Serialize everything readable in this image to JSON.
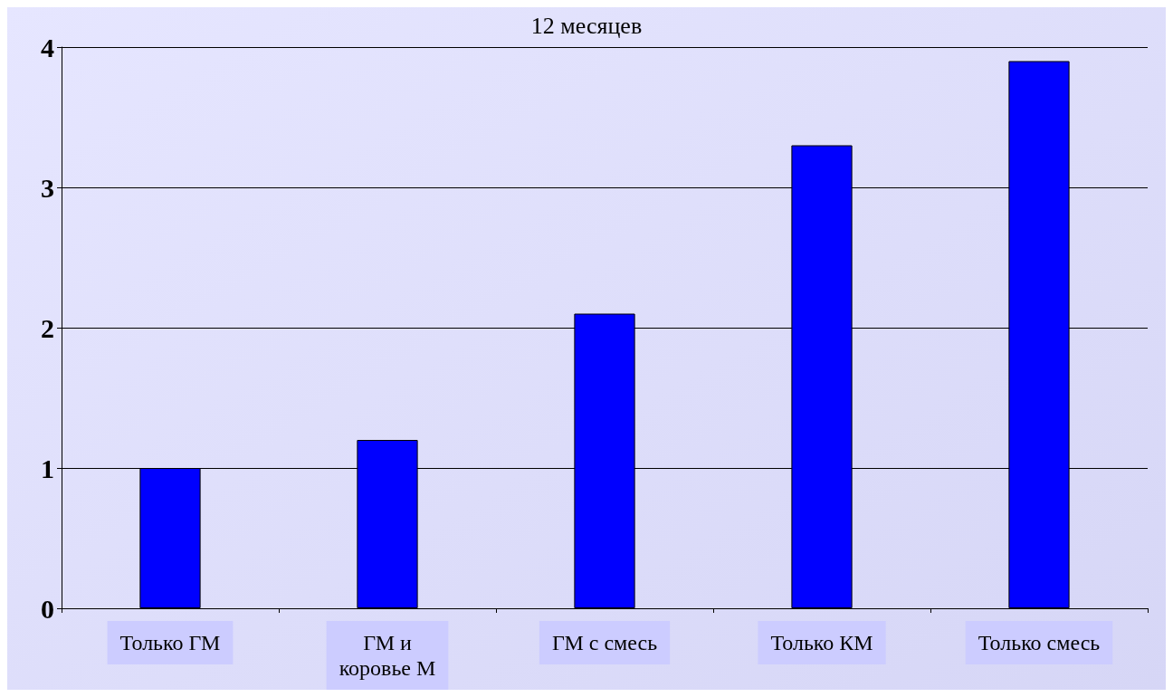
{
  "chart_data": {
    "type": "bar",
    "title": "12 месяцев",
    "categories": [
      "Только ГМ",
      "ГМ и\nкоровье М",
      "ГМ с смесь",
      "Только КМ",
      "Только смесь"
    ],
    "values": [
      1.0,
      1.2,
      2.1,
      3.3,
      3.9
    ],
    "color": "#0000ff",
    "ylim": [
      0,
      4
    ],
    "yticks": [
      0,
      1,
      2,
      3,
      4
    ],
    "grid": "y"
  }
}
